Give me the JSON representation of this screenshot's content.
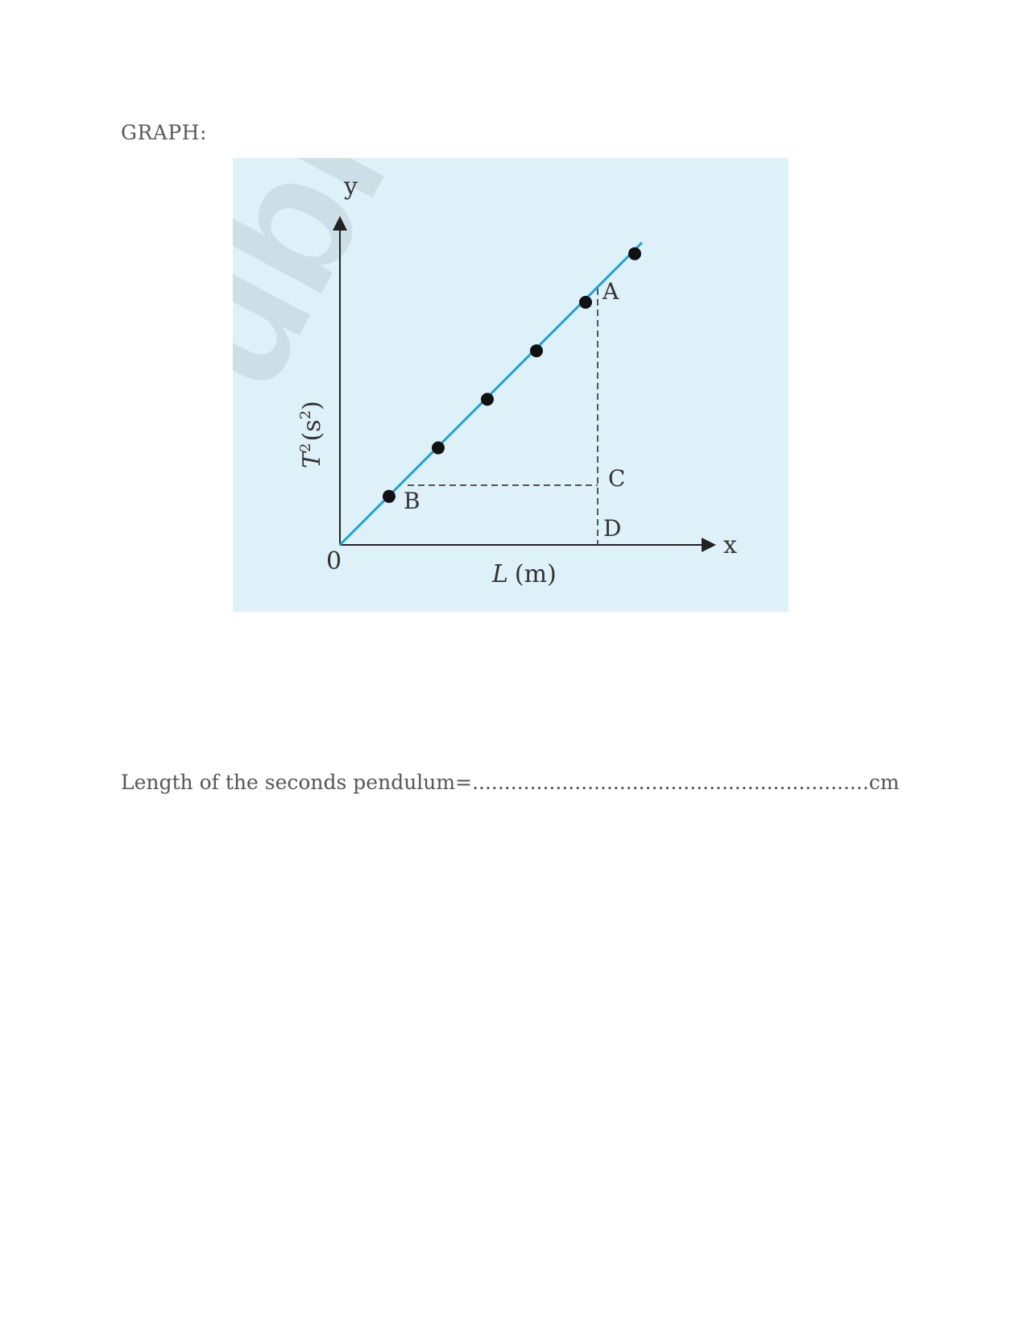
{
  "heading": "GRAPH:",
  "figure": {
    "watermark": "ubli",
    "y_axis_letter": "y",
    "x_axis_letter": "x",
    "origin_label": "0",
    "x_axis_label_var": "L",
    "x_axis_label_unit": "(m)",
    "y_axis_label_var": "T",
    "y_axis_label_exp": "2",
    "y_axis_label_unit_open": "(s",
    "y_axis_label_unit_exp": "2",
    "y_axis_label_unit_close": ")",
    "point_labels": {
      "A": "A",
      "B": "B",
      "C": "C",
      "D": "D"
    },
    "colors": {
      "background": "#def1f8",
      "line": "#1aa3dc",
      "axis": "#222222",
      "points": "#111111"
    }
  },
  "chart_data": {
    "type": "scatter",
    "title": "",
    "xlabel": "L (m)",
    "ylabel": "T^2 (s^2)",
    "x": [
      1,
      2,
      3,
      4,
      5,
      6
    ],
    "y": [
      1,
      2,
      3,
      4,
      5,
      6
    ],
    "fit_line": "through origin",
    "xlim": [
      0,
      7.5
    ],
    "ylim": [
      0,
      7.2
    ],
    "grid": false
  },
  "answer_line": {
    "label": "Length of the seconds pendulum=",
    "dots": "..............................................................",
    "unit": "cm"
  }
}
